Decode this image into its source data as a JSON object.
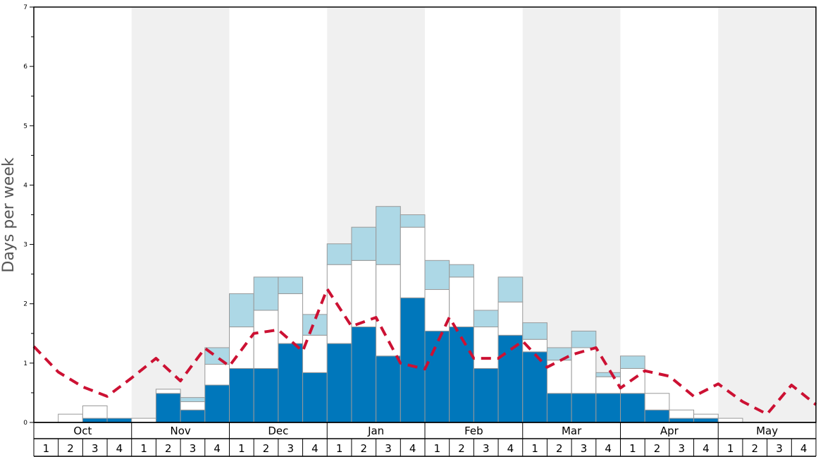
{
  "chart_data": {
    "type": "bar",
    "ylabel": "Days per week",
    "ylim": [
      0,
      7
    ],
    "yticks": [
      "0",
      "1",
      "2",
      "3",
      "4",
      "5",
      "6",
      "7"
    ],
    "months": [
      "Oct",
      "Nov",
      "Dec",
      "Jan",
      "Feb",
      "Mar",
      "Apr",
      "May"
    ],
    "week_labels": [
      "1",
      "2",
      "3",
      "4"
    ],
    "series": [
      {
        "key": "blue",
        "color": "#0077bb",
        "values": [
          0,
          0,
          0.07,
          0.07,
          0,
          0.49,
          0.21,
          0.63,
          0.91,
          0.91,
          1.33,
          0.84,
          1.33,
          1.61,
          1.12,
          2.1,
          1.54,
          1.61,
          0.91,
          1.47,
          1.19,
          0.49,
          0.49,
          0.49,
          0.49,
          0.21,
          0.07,
          0.07,
          0,
          0,
          0,
          0
        ]
      },
      {
        "key": "white",
        "color": "#ffffff",
        "values": [
          0,
          0.14,
          0.21,
          0,
          0.07,
          0.07,
          0.14,
          0.35,
          0.7,
          0.98,
          0.84,
          0.63,
          1.33,
          1.12,
          1.54,
          1.19,
          0.7,
          0.84,
          0.7,
          0.56,
          0.21,
          0.56,
          0.77,
          0.28,
          0.42,
          0.28,
          0.14,
          0.07,
          0.07,
          0,
          0,
          0
        ]
      },
      {
        "key": "lightblue",
        "color": "#add8e6",
        "values": [
          0,
          0,
          0,
          0,
          0,
          0,
          0.07,
          0.28,
          0.56,
          0.56,
          0.28,
          0.35,
          0.35,
          0.56,
          0.98,
          0.21,
          0.49,
          0.21,
          0.28,
          0.42,
          0.28,
          0.21,
          0.28,
          0.07,
          0.21,
          0,
          0,
          0,
          0,
          0,
          0,
          0
        ]
      }
    ],
    "line": {
      "color": "#cc1133",
      "values": [
        1.28,
        0.85,
        0.6,
        0.44,
        0.75,
        1.08,
        0.7,
        1.25,
        0.95,
        1.5,
        1.56,
        1.2,
        2.25,
        1.62,
        1.77,
        1.0,
        0.9,
        1.77,
        1.08,
        1.08,
        1.37,
        0.93,
        1.14,
        1.26,
        0.58,
        0.87,
        0.78,
        0.44,
        0.65,
        0.35,
        0.14,
        0.63,
        0.3
      ]
    },
    "shaded_months": [
      "Nov",
      "Jan",
      "Mar",
      "May"
    ],
    "grid": false,
    "legend": "none"
  }
}
